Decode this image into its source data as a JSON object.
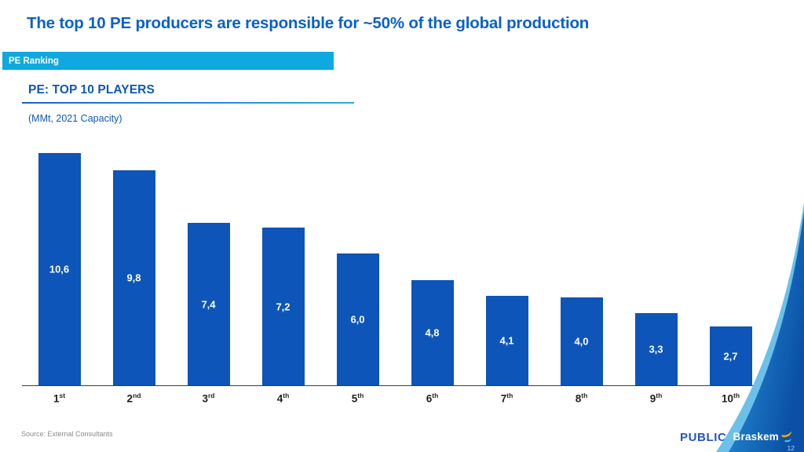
{
  "slide": {
    "title": "The top 10 PE producers are responsible for ~50% of the global production",
    "tag": "PE Ranking",
    "source": "Source: External Consultants",
    "classification": "PUBLIC",
    "brand": "Braskem",
    "page_number": "12"
  },
  "chart_data": {
    "type": "bar",
    "title": "PE: TOP 10 PLAYERS",
    "subtitle": "(MMt, 2021 Capacity)",
    "unit": "MMt",
    "categories": [
      {
        "num": "1",
        "sup": "st"
      },
      {
        "num": "2",
        "sup": "nd"
      },
      {
        "num": "3",
        "sup": "rd"
      },
      {
        "num": "4",
        "sup": "th"
      },
      {
        "num": "5",
        "sup": "th"
      },
      {
        "num": "6",
        "sup": "th"
      },
      {
        "num": "7",
        "sup": "th"
      },
      {
        "num": "8",
        "sup": "th"
      },
      {
        "num": "9",
        "sup": "th"
      },
      {
        "num": "10",
        "sup": "th"
      }
    ],
    "values": [
      10.6,
      9.8,
      7.4,
      7.2,
      6.0,
      4.8,
      4.1,
      4.0,
      3.3,
      2.7
    ],
    "value_labels": [
      "10,6",
      "9,8",
      "7,4",
      "7,2",
      "6,0",
      "4,8",
      "4,1",
      "4,0",
      "3,3",
      "2,7"
    ],
    "ylim": [
      0,
      10.6
    ],
    "xlabel": "",
    "ylabel": "",
    "grid": false,
    "legend": false,
    "value_label_position": "inside-center",
    "bar_color": "#0d55b8"
  },
  "colors": {
    "title_blue": "#0a61c9",
    "section_blue": "#0e58b6",
    "tag_bg": "#0fa9e0",
    "bar_color": "#0d55b8",
    "axis_color": "#3c3c3c",
    "underline_a": "#1565c0",
    "underline_b": "#29abe2",
    "source_gray": "#8a8a8a",
    "public_blue": "#2353c4",
    "swoosh_light": "#6cc0ea",
    "swoosh_mid": "#2b9de0",
    "swoosh_deep": "#0b50a6",
    "logo_yellow": "#f5a800",
    "logo_cyan": "#58c5ef",
    "page_num": "#aad4f2"
  },
  "icons": {
    "braskem_logo_mark": "braskem-swoosh-icon"
  }
}
